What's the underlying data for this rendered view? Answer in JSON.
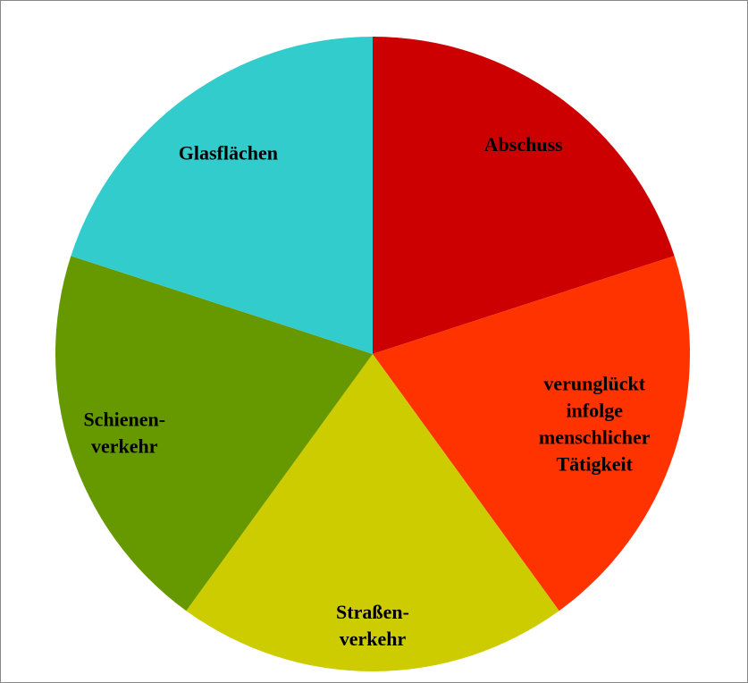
{
  "chart_data": {
    "type": "pie",
    "categories": [
      [
        "Abschuss"
      ],
      [
        "verunglückt",
        "infolge",
        "menschlicher",
        "Tätigkeit"
      ],
      [
        "Straßen-",
        "verkehr"
      ],
      [
        "Schienen-",
        "verkehr"
      ],
      [
        "Glasflächen"
      ]
    ],
    "values": [
      20,
      20,
      20,
      20,
      20
    ],
    "colors": [
      "#cc0000",
      "#ff3300",
      "#cccc00",
      "#669900",
      "#33cccc"
    ],
    "start_angle": 0,
    "direction": "clockwise"
  }
}
